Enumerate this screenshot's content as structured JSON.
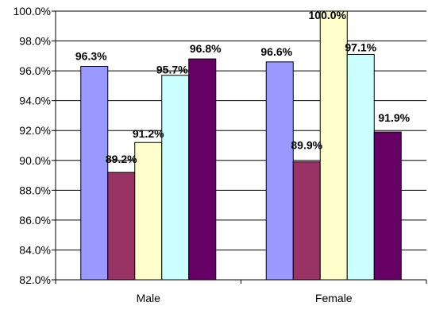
{
  "chart_data": {
    "type": "bar",
    "categories": [
      "Male",
      "Female"
    ],
    "series": [
      {
        "values": [
          96.3,
          96.6
        ],
        "labels": [
          "96.3%",
          "96.6%"
        ],
        "color": "#9999ff"
      },
      {
        "values": [
          89.2,
          89.9
        ],
        "labels": [
          "89.2%",
          "89.9%"
        ],
        "color": "#993366"
      },
      {
        "values": [
          91.2,
          100.0
        ],
        "labels": [
          "91.2%",
          "100.0%"
        ],
        "color": "#ffffcc"
      },
      {
        "values": [
          95.7,
          97.1
        ],
        "labels": [
          "95.7%",
          "97.1%"
        ],
        "color": "#ccffff"
      },
      {
        "values": [
          96.8,
          91.9
        ],
        "labels": [
          "96.8%",
          "91.9%"
        ],
        "color": "#660066"
      }
    ],
    "y_ticks": [
      82.0,
      84.0,
      86.0,
      88.0,
      90.0,
      92.0,
      94.0,
      96.0,
      98.0,
      100.0
    ],
    "y_tick_labels": [
      "82.0%",
      "84.0%",
      "86.0%",
      "88.0%",
      "90.0%",
      "92.0%",
      "94.0%",
      "96.0%",
      "98.0%",
      "100.0%"
    ],
    "ylim": [
      82.0,
      100.0
    ],
    "grid": true,
    "legend": "none",
    "title": "",
    "xlabel": "",
    "ylabel": ""
  }
}
